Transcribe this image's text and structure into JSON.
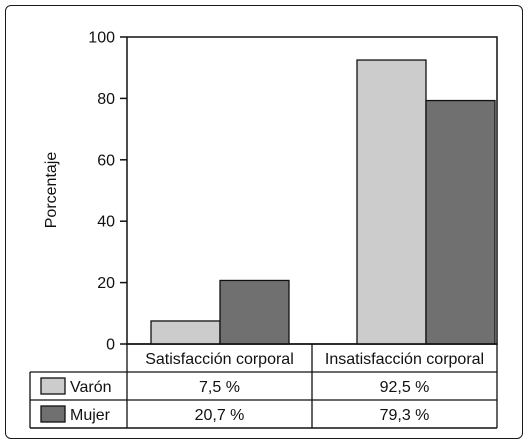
{
  "chart_data": {
    "type": "bar",
    "categories": [
      "Satisfacción corporal",
      "Insatisfacción corporal"
    ],
    "series": [
      {
        "name": "Varón",
        "values": [
          7.5,
          92.5
        ],
        "table_values": [
          "7,5 %",
          "92,5 %"
        ],
        "color": "#cccccc"
      },
      {
        "name": "Mujer",
        "values": [
          20.7,
          79.3
        ],
        "table_values": [
          "20,7 %",
          "79,3 %"
        ],
        "color": "#707070"
      }
    ],
    "ylabel": "Porcentaje",
    "yticks": [
      "0",
      "20",
      "40",
      "60",
      "80",
      "100"
    ],
    "ylim": [
      0,
      100
    ],
    "grid": false,
    "legend": "data table below chart"
  }
}
